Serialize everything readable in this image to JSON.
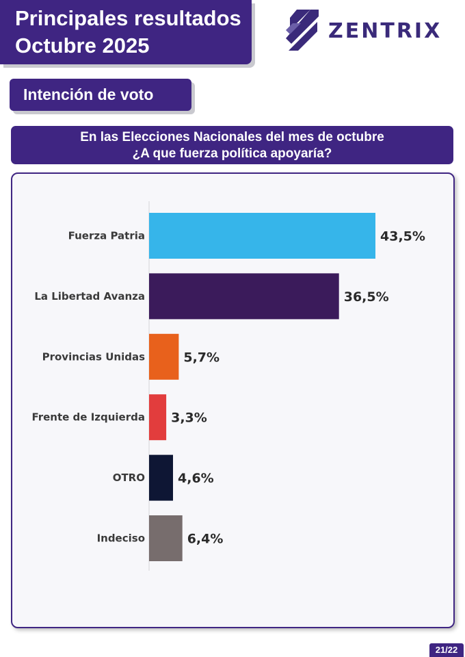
{
  "header": {
    "title_line1": "Principales resultados",
    "title_line2": "Octubre 2025",
    "brand": "ZENTRIX"
  },
  "section": {
    "label": "Intención de voto"
  },
  "question": {
    "line1": "En las Elecciones Nacionales del mes de octubre",
    "line2": "¿A que fuerza política apoyaría?"
  },
  "page": {
    "number": "21/22"
  },
  "colors": {
    "brand": "#3f2582",
    "fuerza_patria": "#36b5ea",
    "la_libertad_avanza": "#3b1b5b",
    "provincias_unidas": "#e8611c",
    "frente_de_izquierda": "#e23d3d",
    "otro": "#0e1634",
    "indeciso": "#776d6d"
  },
  "chart_data": {
    "type": "bar",
    "orientation": "horizontal",
    "title": "",
    "xlabel": "",
    "ylabel": "",
    "xlim": [
      0,
      43.5
    ],
    "grid": false,
    "categories": [
      "Fuerza Patria",
      "La Libertad Avanza",
      "Provincias Unidas",
      "Frente de Izquierda",
      "OTRO",
      "Indeciso"
    ],
    "values": [
      43.5,
      36.5,
      5.7,
      3.3,
      4.6,
      6.4
    ],
    "value_labels": [
      "43,5%",
      "36,5%",
      "5,7%",
      "3,3%",
      "4,6%",
      "6,4%"
    ],
    "bar_colors": [
      "#36b5ea",
      "#3b1b5b",
      "#e8611c",
      "#e23d3d",
      "#0e1634",
      "#776d6d"
    ]
  }
}
